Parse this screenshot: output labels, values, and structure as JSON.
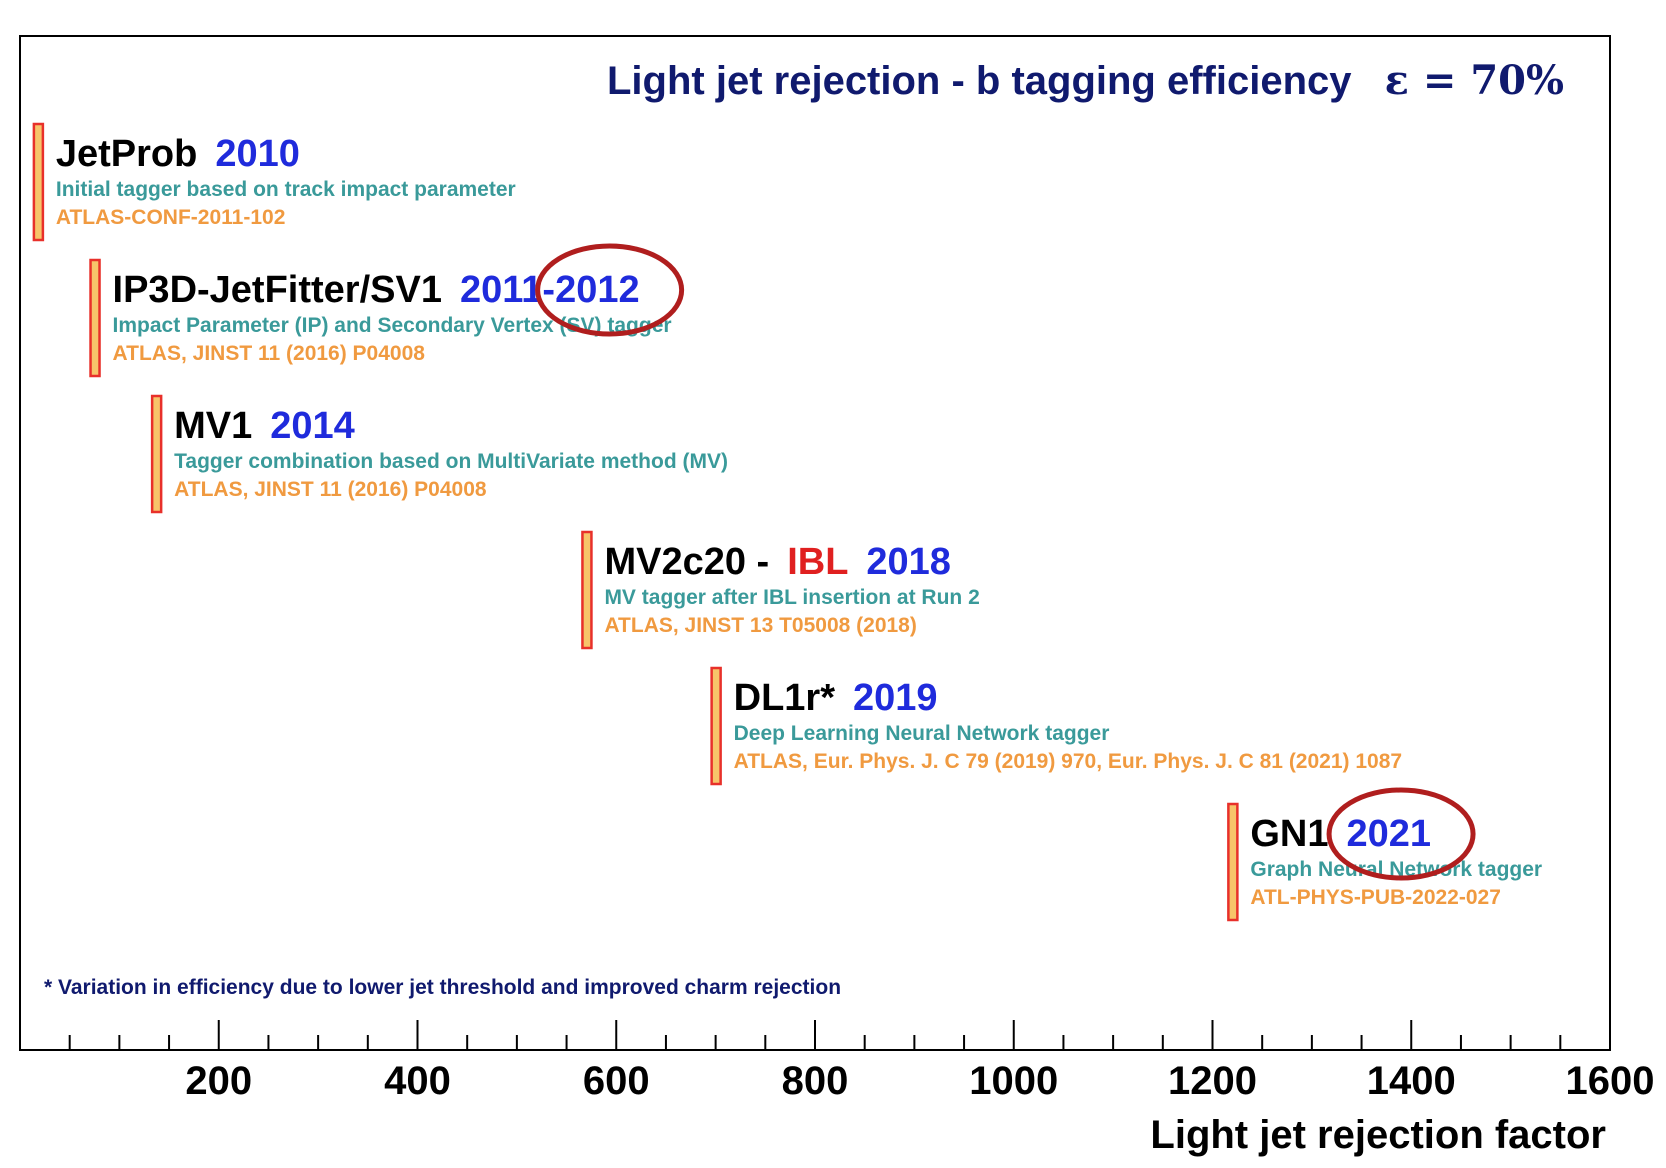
{
  "chart_data": {
    "type": "timeline",
    "title": "Light jet rejection - b tagging efficiency",
    "title_epsilon": "ε = 70%",
    "xlabel": "Light jet rejection factor",
    "xlim": [
      0,
      1600
    ],
    "x_ticks": [
      200,
      400,
      600,
      800,
      1000,
      1200,
      1400,
      1600
    ],
    "x_tick_labels": [
      "200",
      "400",
      "600",
      "800",
      "1000",
      "1200",
      "1400",
      "1600"
    ],
    "minor_tick_step": 50,
    "footnote": "* Variation in efficiency due to lower jet threshold and improved charm rejection",
    "entries": [
      {
        "x": 18,
        "name": "JetProb",
        "extra": "",
        "year": "2010",
        "desc": "Initial tagger based on track impact parameter",
        "ref": "ATLAS-CONF-2011-102",
        "circled": false
      },
      {
        "x": 75,
        "name": "IP3D-JetFitter/SV1",
        "extra": "",
        "year": "2011-2012",
        "desc": "Impact Parameter (IP) and Secondary Vertex (SV) tagger",
        "ref": "ATLAS, JINST 11 (2016) P04008",
        "circled": true
      },
      {
        "x": 137,
        "name": "MV1",
        "extra": "",
        "year": "2014",
        "desc": "Tagger combination based on MultiVariate method (MV)",
        "ref": "ATLAS, JINST 11 (2016) P04008",
        "circled": false
      },
      {
        "x": 570,
        "name": "MV2c20 -",
        "extra": "IBL",
        "year": "2018",
        "desc": "MV tagger after IBL insertion at Run 2",
        "ref": "ATLAS, JINST 13 T05008 (2018)",
        "circled": false
      },
      {
        "x": 700,
        "name": "DL1r*",
        "extra": "",
        "year": "2019",
        "desc": "Deep Learning Neural Network tagger",
        "ref": "ATLAS, Eur. Phys. J. C 79 (2019) 970, Eur. Phys. J. C 81 (2021) 1087",
        "circled": false
      },
      {
        "x": 1220,
        "name": "GN1",
        "extra": "",
        "year": "2021",
        "desc": "Graph Neural Network tagger",
        "ref": "ATL-PHYS-PUB-2022-027",
        "circled": true
      }
    ]
  },
  "colors": {
    "title": "#101a6e",
    "year": "#1f2bdc",
    "ibl": "#e02020",
    "description": "#3a9a9a",
    "reference": "#f09a40",
    "marker_fill": "#f7c46a",
    "marker_stroke": "#e8302a",
    "circle": "#b01e1e"
  }
}
